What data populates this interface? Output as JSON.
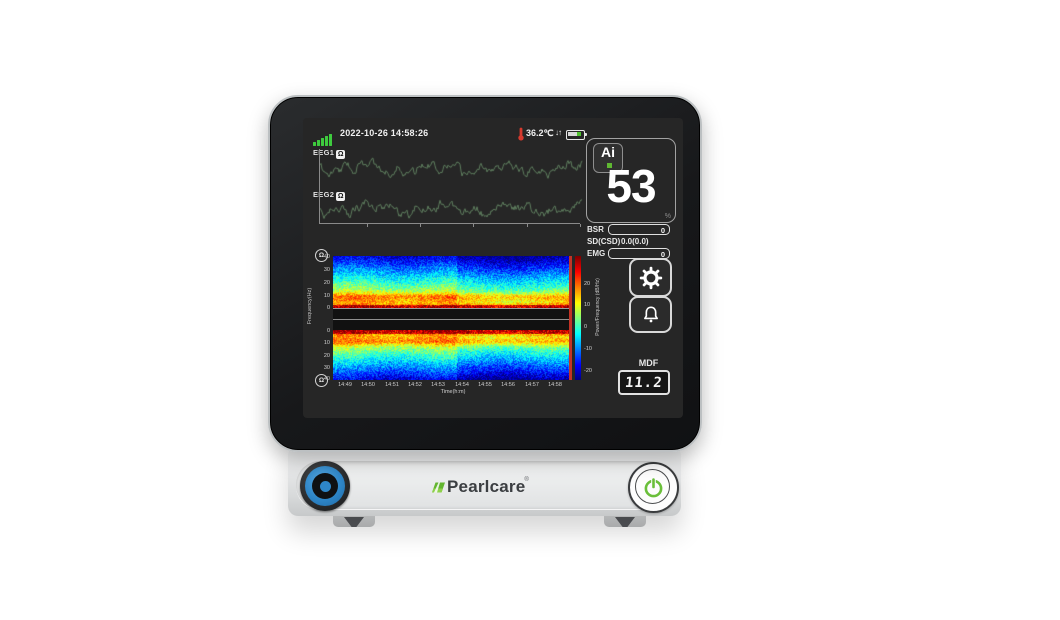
{
  "brand": {
    "logo_text": "Pearlcare",
    "registered": "®"
  },
  "status_bar": {
    "datetime": "2022-10-26 14:58:26",
    "temperature": "36.2℃",
    "net_arrows": "↓↑"
  },
  "channels": {
    "eeg1_label": "EEG1",
    "eeg2_label": "EEG2",
    "impedance_symbol": "Ω"
  },
  "index_panel": {
    "ai_logo": "Ai",
    "index_value": "53",
    "percent_mark": "%"
  },
  "metrics": {
    "bsr": {
      "label": "BSR",
      "value": "0"
    },
    "sd": {
      "label": "SD(CSD)",
      "value": "0.0(0.0)"
    },
    "emg": {
      "label": "EMG",
      "value": "0"
    }
  },
  "mdf": {
    "label": "MDF",
    "value": "11.2"
  },
  "chart_data": [
    {
      "type": "line",
      "name": "EEG1 raw waveform",
      "color": "#5f7f5f",
      "note": "continuous noisy EEG trace, no visible amplitude scale"
    },
    {
      "type": "line",
      "name": "EEG2 raw waveform",
      "color": "#5f7f5f",
      "note": "continuous noisy EEG trace, no visible amplitude scale"
    },
    {
      "type": "heatmap",
      "name": "density-spectral-array",
      "ylabel": "Frequency(Hz)",
      "xlabel": "Time(h:m)",
      "colorbar_label": "Power/Frequency (dB/Hz)",
      "y_ticks_top": [
        "40",
        "30",
        "20",
        "10",
        "0"
      ],
      "y_ticks_bottom": [
        "0",
        "10",
        "20",
        "30",
        "40"
      ],
      "x_ticks": [
        "14:49",
        "14:50",
        "14:51",
        "14:52",
        "14:53",
        "14:54",
        "14:55",
        "14:56",
        "14:57",
        "14:58"
      ],
      "colorbar_ticks": [
        "20",
        "10",
        "0",
        "-10",
        "-20"
      ],
      "colormap": "jet",
      "freq_range_hz": [
        0,
        40
      ],
      "pattern": "two mirrored bands; high power red/orange below ~3 Hz, yellow band near 5-12 Hz, cyan/blue above 20 Hz, slightly bluer after 14:53"
    }
  ],
  "colors": {
    "eeg_trace": "#5f7f5f",
    "signal_bars": "#3ecb3e",
    "battery_fill": "#4fc22e",
    "alarm_cursor": "#c23326",
    "knob_blue": "#2e86c8",
    "power_symbol": "#6abf3a",
    "leaf_green": "#62b52f"
  }
}
